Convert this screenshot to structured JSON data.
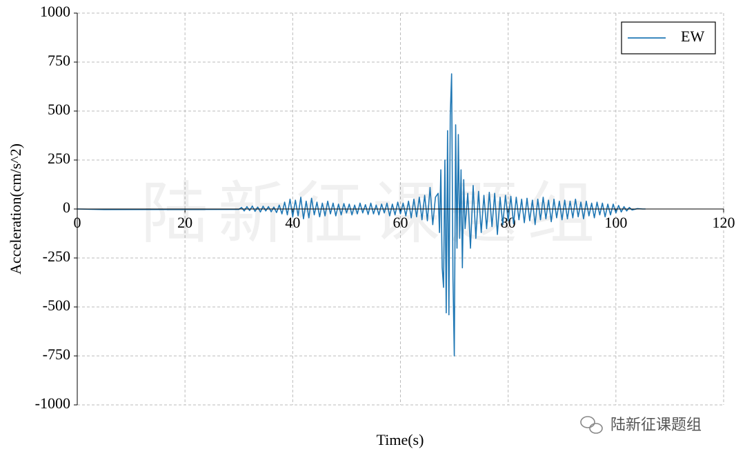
{
  "chart_data": {
    "type": "line",
    "x_label": "Time(s)",
    "y_label": "Acceleration(cm/s^2)",
    "watermark": "陆新征课题组",
    "source_mark": "陆新征课题组",
    "xlim": [
      0,
      120
    ],
    "ylim": [
      -1000,
      1000
    ],
    "xticks": [
      0,
      20,
      40,
      60,
      80,
      100,
      120
    ],
    "yticks": [
      -1000,
      -750,
      -500,
      -250,
      0,
      250,
      500,
      750,
      1000
    ],
    "grid": true,
    "legend": "upper right",
    "x": [
      0,
      5,
      30,
      30.5,
      31,
      31.5,
      32,
      32.5,
      33,
      33.5,
      34,
      34.5,
      35,
      35.5,
      36,
      36.5,
      37,
      37.5,
      38,
      38.5,
      39,
      39.5,
      40,
      40.5,
      41,
      41.5,
      42,
      42.5,
      43,
      43.5,
      44,
      44.5,
      45,
      45.5,
      46,
      46.5,
      47,
      47.5,
      48,
      48.5,
      49,
      49.5,
      50,
      50.5,
      51,
      51.5,
      52,
      52.5,
      53,
      53.5,
      54,
      54.5,
      55,
      55.5,
      56,
      56.5,
      57,
      57.5,
      58,
      58.5,
      59,
      59.5,
      60,
      60.5,
      61,
      61.5,
      62,
      62.5,
      63,
      63.5,
      64,
      64.5,
      65,
      65.5,
      66,
      66.5,
      67,
      67.25,
      67.5,
      67.75,
      68,
      68.25,
      68.5,
      68.75,
      69,
      69.25,
      69.5,
      69.75,
      70,
      70.25,
      70.5,
      70.75,
      71,
      71.25,
      71.5,
      71.75,
      72,
      72.5,
      73,
      73.5,
      74,
      74.5,
      75,
      75.5,
      76,
      76.5,
      77,
      77.5,
      78,
      78.5,
      79,
      79.5,
      80,
      80.5,
      81,
      81.5,
      82,
      82.5,
      83,
      83.5,
      84,
      84.5,
      85,
      85.5,
      86,
      86.5,
      87,
      87.5,
      88,
      88.5,
      89,
      89.5,
      90,
      90.5,
      91,
      91.5,
      92,
      92.5,
      93,
      93.5,
      94,
      94.5,
      95,
      95.5,
      96,
      96.5,
      97,
      97.5,
      98,
      98.5,
      99,
      99.5,
      100,
      100.5,
      101,
      101.5,
      102,
      102.5,
      103,
      104,
      105,
      105.5
    ],
    "series": [
      {
        "name": "EW",
        "color": "#1f77b4",
        "values": [
          0,
          -3,
          -2,
          8,
          -10,
          12,
          -8,
          15,
          -12,
          10,
          -15,
          14,
          -10,
          12,
          -14,
          10,
          -18,
          20,
          -25,
          35,
          -30,
          50,
          -40,
          45,
          -35,
          60,
          -50,
          40,
          -45,
          55,
          -30,
          35,
          -40,
          30,
          -35,
          40,
          -25,
          30,
          -35,
          25,
          -30,
          28,
          -20,
          25,
          -30,
          20,
          -25,
          30,
          -20,
          22,
          -28,
          30,
          -25,
          20,
          -30,
          25,
          -20,
          30,
          -35,
          25,
          -30,
          35,
          -25,
          30,
          -35,
          40,
          -45,
          50,
          -40,
          60,
          -55,
          70,
          -60,
          110,
          -80,
          60,
          80,
          -120,
          200,
          -300,
          -400,
          250,
          -530,
          400,
          -540,
          480,
          690,
          -350,
          -750,
          430,
          -200,
          380,
          -150,
          200,
          -300,
          150,
          -100,
          80,
          -200,
          120,
          -150,
          90,
          -120,
          70,
          -100,
          85,
          -90,
          80,
          -130,
          60,
          -80,
          70,
          -60,
          65,
          -75,
          60,
          -55,
          50,
          -70,
          55,
          -60,
          45,
          -80,
          50,
          -55,
          60,
          -50,
          45,
          -65,
          50,
          -45,
          40,
          -55,
          45,
          -50,
          40,
          -45,
          50,
          -40,
          35,
          -50,
          40,
          -35,
          30,
          -45,
          35,
          -30,
          30,
          -40,
          25,
          -30,
          25,
          -20,
          18,
          -15,
          12,
          -10,
          8,
          -5,
          2,
          0,
          0
        ]
      }
    ]
  }
}
